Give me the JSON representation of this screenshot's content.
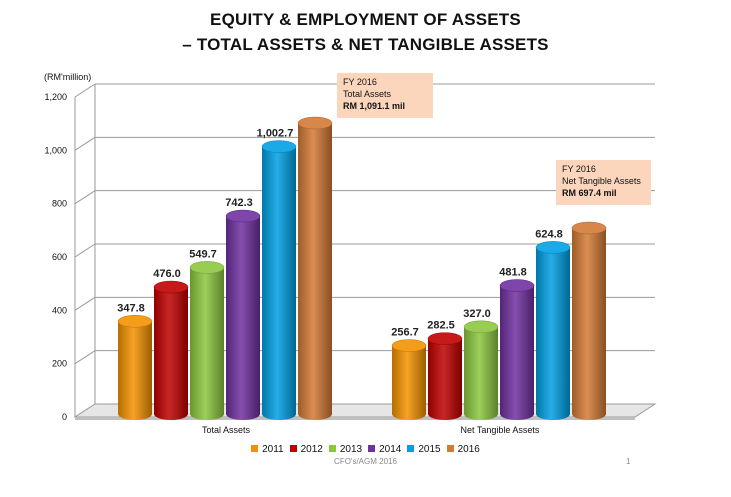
{
  "title_line1": "EQUITY & EMPLOYMENT OF ASSETS",
  "title_line2": "– TOTAL ASSETS & NET TANGIBLE ASSETS",
  "unit_label": "(RM'million)",
  "callouts": [
    {
      "line1": "FY 2016",
      "line2": "Total Assets",
      "line3": "RM 1,091.1 mil"
    },
    {
      "line1": "FY 2016",
      "line2": "Net Tangible Assets",
      "line3": "RM 697.4 mil"
    }
  ],
  "footer": "CFO's/AGM 2016",
  "page_number": "1",
  "colors": {
    "2011": "#f39200",
    "2012": "#c00000",
    "2013": "#8cc63f",
    "2014": "#7030a0",
    "2015": "#00a0e3",
    "2016": "#d37a35"
  },
  "chart_data": {
    "type": "bar",
    "categories": [
      "Total Assets",
      "Net Tangible Assets"
    ],
    "series": [
      {
        "name": "2011",
        "values": [
          347.8,
          256.7
        ],
        "labels": [
          "347.8",
          "256.7"
        ]
      },
      {
        "name": "2012",
        "values": [
          476.0,
          282.5
        ],
        "labels": [
          "476.0",
          "282.5"
        ]
      },
      {
        "name": "2013",
        "values": [
          549.7,
          327.0
        ],
        "labels": [
          "549.7",
          "327.0"
        ]
      },
      {
        "name": "2014",
        "values": [
          742.3,
          481.8
        ],
        "labels": [
          "742.3",
          "481.8"
        ]
      },
      {
        "name": "2015",
        "values": [
          1002.7,
          624.8
        ],
        "labels": [
          "1,002.7",
          "624.8"
        ]
      },
      {
        "name": "2016",
        "values": [
          1091.1,
          697.4
        ],
        "labels": [
          "",
          ""
        ]
      }
    ],
    "yticks": [
      0,
      200,
      400,
      600,
      800,
      1000,
      1200
    ],
    "ytick_labels": [
      "0",
      "200",
      "400",
      "600",
      "800",
      "1,000",
      "1,200"
    ],
    "ylim": [
      0,
      1200
    ],
    "grid": true,
    "legend": "bottom"
  }
}
